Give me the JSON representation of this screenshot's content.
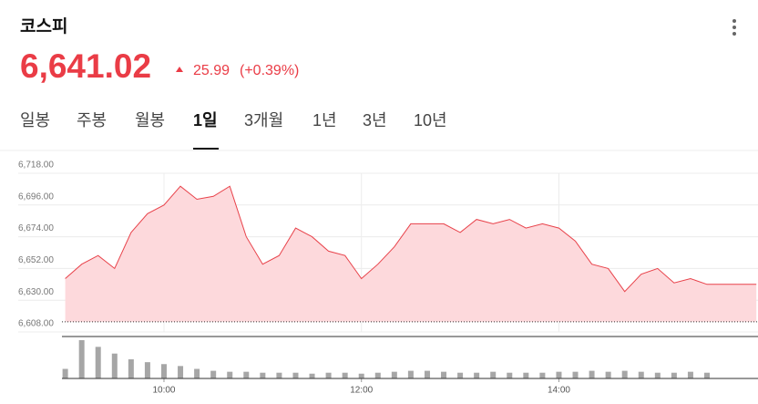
{
  "header": {
    "title": "코스피",
    "price": "6,641.02",
    "change": "25.99",
    "change_pct": "(+0.39%)"
  },
  "tabs": [
    "일봉",
    "주봉",
    "월봉",
    "1일",
    "3개월",
    "1년",
    "3년",
    "10년"
  ],
  "selected_tab": 3,
  "chart_data": [
    {
      "type": "area",
      "color": "#e8424a",
      "fill": "#fdd9dc",
      "grid": true,
      "x": [
        "09:00",
        "09:10",
        "09:20",
        "09:30",
        "09:40",
        "09:50",
        "10:00",
        "10:10",
        "10:20",
        "10:30",
        "10:40",
        "10:50",
        "11:00",
        "11:10",
        "11:20",
        "11:30",
        "11:40",
        "11:50",
        "12:00",
        "12:10",
        "12:20",
        "12:30",
        "12:40",
        "12:50",
        "13:00",
        "13:10",
        "13:20",
        "13:30",
        "13:40",
        "13:50",
        "14:00",
        "14:10",
        "14:20",
        "14:30",
        "14:40",
        "14:50",
        "15:00",
        "15:10",
        "15:20",
        "15:30",
        "15:40",
        "15:50",
        "16:00"
      ],
      "values": [
        6645,
        6655,
        6661,
        6652,
        6677,
        6690,
        6696,
        6709,
        6700,
        6702,
        6709,
        6674,
        6655,
        6661,
        6680,
        6674,
        6664,
        6661,
        6645,
        6655,
        6667,
        6683,
        6683,
        6683,
        6677,
        6686,
        6683,
        6686,
        6680,
        6683,
        6680,
        6671,
        6655,
        6652,
        6636,
        6648,
        6652,
        6642,
        6645,
        6641.02,
        6641.02,
        6641.02,
        6641.02
      ],
      "baseline": 6615.03,
      "xlim": [
        "08:58",
        "16:01"
      ],
      "xticks": [
        "10:00",
        "12:00",
        "14:00"
      ],
      "ylim": [
        6608,
        6718
      ],
      "yticks": [
        {
          "value": 6608,
          "label": "6,608.00"
        },
        {
          "value": 6630,
          "label": "6,630.00"
        },
        {
          "value": 6652,
          "label": "6,652.00"
        },
        {
          "value": 6674,
          "label": "6,674.00"
        },
        {
          "value": 6696,
          "label": "6,696.00"
        },
        {
          "value": 6718,
          "label": "6,718.00"
        }
      ]
    },
    {
      "type": "bar",
      "color": "#a6a6a6",
      "x": [
        "09:00",
        "09:10",
        "09:20",
        "09:30",
        "09:40",
        "09:50",
        "10:00",
        "10:10",
        "10:20",
        "10:30",
        "10:40",
        "10:50",
        "11:00",
        "11:10",
        "11:20",
        "11:30",
        "11:40",
        "11:50",
        "12:00",
        "12:10",
        "12:20",
        "12:30",
        "12:40",
        "12:50",
        "13:00",
        "13:10",
        "13:20",
        "13:30",
        "13:40",
        "13:50",
        "14:00",
        "14:10",
        "14:20",
        "14:30",
        "14:40",
        "14:50",
        "15:00",
        "15:10",
        "15:20",
        "15:30"
      ],
      "values": [
        10,
        40,
        33,
        26,
        20,
        17,
        15,
        13,
        10,
        8,
        7,
        7,
        6,
        6,
        6,
        5,
        6,
        6,
        5,
        6,
        7,
        8,
        8,
        7,
        6,
        6,
        7,
        6,
        6,
        6,
        7,
        7,
        8,
        7,
        8,
        7,
        6,
        6,
        7,
        6
      ]
    }
  ]
}
